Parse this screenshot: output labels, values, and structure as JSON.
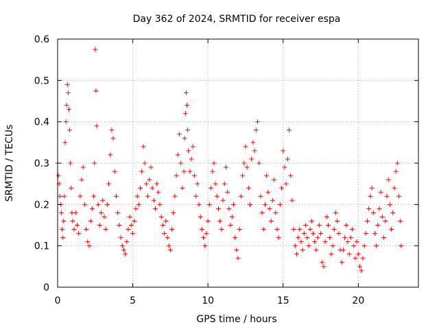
{
  "chart_data": {
    "type": "scatter",
    "title": "Day 362 of 2024, SRMTID for receiver espa",
    "xlabel": "GPS time / hours",
    "ylabel": "SRMTID / TECUs",
    "xlim": [
      0,
      24
    ],
    "ylim": [
      0,
      0.6
    ],
    "x_ticks": [
      0,
      5,
      10,
      15,
      20
    ],
    "x_tick_labels": [
      "0",
      "5",
      "10",
      "15",
      "20"
    ],
    "y_ticks": [
      0,
      0.1,
      0.2,
      0.3,
      0.4,
      0.5,
      0.6
    ],
    "y_tick_labels": [
      "0",
      "0.1",
      "0.2",
      "0.3",
      "0.4",
      "0.5",
      "0.6"
    ],
    "grid": true,
    "marker": "+",
    "series": [
      {
        "name": "SRMTID",
        "color": "#ff0000",
        "points": [
          [
            0.0,
            0.3
          ],
          [
            0.05,
            0.27
          ],
          [
            0.1,
            0.25
          ],
          [
            0.15,
            0.22
          ],
          [
            0.2,
            0.2
          ],
          [
            0.25,
            0.18
          ],
          [
            0.3,
            0.14
          ],
          [
            0.35,
            0.12
          ],
          [
            0.4,
            0.16
          ],
          [
            0.45,
            0.22
          ],
          [
            0.5,
            0.35
          ],
          [
            0.55,
            0.4
          ],
          [
            0.6,
            0.44
          ],
          [
            0.65,
            0.49
          ],
          [
            0.7,
            0.47
          ],
          [
            0.75,
            0.43
          ],
          [
            0.8,
            0.38
          ],
          [
            0.85,
            0.3
          ],
          [
            0.9,
            0.24
          ],
          [
            0.95,
            0.18
          ],
          [
            1.0,
            0.16
          ],
          [
            1.1,
            0.14
          ],
          [
            1.2,
            0.18
          ],
          [
            1.3,
            0.15
          ],
          [
            1.4,
            0.13
          ],
          [
            1.5,
            0.22
          ],
          [
            1.6,
            0.26
          ],
          [
            1.7,
            0.29
          ],
          [
            1.8,
            0.2
          ],
          [
            1.9,
            0.14
          ],
          [
            2.0,
            0.11
          ],
          [
            2.1,
            0.1
          ],
          [
            2.2,
            0.16
          ],
          [
            2.3,
            0.19
          ],
          [
            2.4,
            0.22
          ],
          [
            2.45,
            0.3
          ],
          [
            2.5,
            0.575
          ],
          [
            2.55,
            0.475
          ],
          [
            2.6,
            0.39
          ],
          [
            2.7,
            0.2
          ],
          [
            2.8,
            0.15
          ],
          [
            2.9,
            0.18
          ],
          [
            3.0,
            0.21
          ],
          [
            3.1,
            0.17
          ],
          [
            3.2,
            0.14
          ],
          [
            3.3,
            0.2
          ],
          [
            3.4,
            0.25
          ],
          [
            3.5,
            0.32
          ],
          [
            3.6,
            0.38
          ],
          [
            3.7,
            0.36
          ],
          [
            3.8,
            0.28
          ],
          [
            3.9,
            0.22
          ],
          [
            4.0,
            0.18
          ],
          [
            4.1,
            0.15
          ],
          [
            4.2,
            0.12
          ],
          [
            4.3,
            0.1
          ],
          [
            4.4,
            0.09
          ],
          [
            4.5,
            0.08
          ],
          [
            4.6,
            0.11
          ],
          [
            4.7,
            0.14
          ],
          [
            4.8,
            0.17
          ],
          [
            4.9,
            0.15
          ],
          [
            5.0,
            0.13
          ],
          [
            5.1,
            0.16
          ],
          [
            5.2,
            0.19
          ],
          [
            5.3,
            0.22
          ],
          [
            5.4,
            0.2
          ],
          [
            5.5,
            0.24
          ],
          [
            5.6,
            0.28
          ],
          [
            5.7,
            0.34
          ],
          [
            5.8,
            0.3
          ],
          [
            5.9,
            0.25
          ],
          [
            6.0,
            0.22
          ],
          [
            6.1,
            0.26
          ],
          [
            6.2,
            0.29
          ],
          [
            6.3,
            0.24
          ],
          [
            6.4,
            0.21
          ],
          [
            6.5,
            0.19
          ],
          [
            6.6,
            0.25
          ],
          [
            6.7,
            0.23
          ],
          [
            6.8,
            0.2
          ],
          [
            6.9,
            0.17
          ],
          [
            7.0,
            0.15
          ],
          [
            7.1,
            0.13
          ],
          [
            7.2,
            0.16
          ],
          [
            7.3,
            0.12
          ],
          [
            7.4,
            0.1
          ],
          [
            7.5,
            0.09
          ],
          [
            7.6,
            0.14
          ],
          [
            7.7,
            0.18
          ],
          [
            7.8,
            0.22
          ],
          [
            7.9,
            0.27
          ],
          [
            8.0,
            0.32
          ],
          [
            8.1,
            0.37
          ],
          [
            8.2,
            0.3
          ],
          [
            8.3,
            0.24
          ],
          [
            8.4,
            0.28
          ],
          [
            8.45,
            0.36
          ],
          [
            8.5,
            0.42
          ],
          [
            8.55,
            0.47
          ],
          [
            8.6,
            0.44
          ],
          [
            8.65,
            0.38
          ],
          [
            8.7,
            0.33
          ],
          [
            8.8,
            0.28
          ],
          [
            8.9,
            0.31
          ],
          [
            9.0,
            0.34
          ],
          [
            9.1,
            0.27
          ],
          [
            9.2,
            0.22
          ],
          [
            9.3,
            0.25
          ],
          [
            9.4,
            0.2
          ],
          [
            9.5,
            0.17
          ],
          [
            9.6,
            0.14
          ],
          [
            9.7,
            0.12
          ],
          [
            9.8,
            0.1
          ],
          [
            9.9,
            0.13
          ],
          [
            10.0,
            0.16
          ],
          [
            10.1,
            0.2
          ],
          [
            10.2,
            0.24
          ],
          [
            10.3,
            0.28
          ],
          [
            10.4,
            0.3
          ],
          [
            10.5,
            0.25
          ],
          [
            10.6,
            0.22
          ],
          [
            10.7,
            0.19
          ],
          [
            10.8,
            0.16
          ],
          [
            10.9,
            0.14
          ],
          [
            11.0,
            0.21
          ],
          [
            11.1,
            0.25
          ],
          [
            11.2,
            0.29
          ],
          [
            11.3,
            0.23
          ],
          [
            11.4,
            0.19
          ],
          [
            11.5,
            0.15
          ],
          [
            11.6,
            0.17
          ],
          [
            11.7,
            0.2
          ],
          [
            11.8,
            0.12
          ],
          [
            11.9,
            0.09
          ],
          [
            12.0,
            0.07
          ],
          [
            12.1,
            0.14
          ],
          [
            12.2,
            0.22
          ],
          [
            12.3,
            0.27
          ],
          [
            12.4,
            0.3
          ],
          [
            12.5,
            0.34
          ],
          [
            12.6,
            0.29
          ],
          [
            12.7,
            0.24
          ],
          [
            12.8,
            0.2
          ],
          [
            12.9,
            0.31
          ],
          [
            13.0,
            0.35
          ],
          [
            13.1,
            0.33
          ],
          [
            13.2,
            0.38
          ],
          [
            13.3,
            0.4
          ],
          [
            13.4,
            0.3
          ],
          [
            13.5,
            0.22
          ],
          [
            13.6,
            0.18
          ],
          [
            13.7,
            0.14
          ],
          [
            13.8,
            0.2
          ],
          [
            13.9,
            0.27
          ],
          [
            14.0,
            0.23
          ],
          [
            14.1,
            0.19
          ],
          [
            14.2,
            0.16
          ],
          [
            14.3,
            0.21
          ],
          [
            14.4,
            0.26
          ],
          [
            14.5,
            0.18
          ],
          [
            14.6,
            0.14
          ],
          [
            14.7,
            0.12
          ],
          [
            14.8,
            0.2
          ],
          [
            14.9,
            0.24
          ],
          [
            15.0,
            0.33
          ],
          [
            15.1,
            0.29
          ],
          [
            15.2,
            0.25
          ],
          [
            15.3,
            0.31
          ],
          [
            15.4,
            0.38
          ],
          [
            15.5,
            0.27
          ],
          [
            15.6,
            0.21
          ],
          [
            15.7,
            0.14
          ],
          [
            15.8,
            0.1
          ],
          [
            15.9,
            0.08
          ],
          [
            16.0,
            0.12
          ],
          [
            16.1,
            0.14
          ],
          [
            16.2,
            0.11
          ],
          [
            16.3,
            0.09
          ],
          [
            16.4,
            0.13
          ],
          [
            16.5,
            0.15
          ],
          [
            16.6,
            0.12
          ],
          [
            16.7,
            0.1
          ],
          [
            16.8,
            0.14
          ],
          [
            16.9,
            0.16
          ],
          [
            17.0,
            0.13
          ],
          [
            17.1,
            0.11
          ],
          [
            17.2,
            0.09
          ],
          [
            17.3,
            0.12
          ],
          [
            17.4,
            0.15
          ],
          [
            17.5,
            0.13
          ],
          [
            17.6,
            0.06
          ],
          [
            17.7,
            0.05
          ],
          [
            17.8,
            0.11
          ],
          [
            17.9,
            0.17
          ],
          [
            18.0,
            0.15
          ],
          [
            18.1,
            0.12
          ],
          [
            18.2,
            0.08
          ],
          [
            18.3,
            0.1
          ],
          [
            18.4,
            0.14
          ],
          [
            18.5,
            0.18
          ],
          [
            18.6,
            0.16
          ],
          [
            18.7,
            0.13
          ],
          [
            18.8,
            0.09
          ],
          [
            18.9,
            0.06
          ],
          [
            19.0,
            0.09
          ],
          [
            19.1,
            0.12
          ],
          [
            19.2,
            0.15
          ],
          [
            19.3,
            0.11
          ],
          [
            19.4,
            0.08
          ],
          [
            19.5,
            0.12
          ],
          [
            19.6,
            0.14
          ],
          [
            19.7,
            0.1
          ],
          [
            19.8,
            0.07
          ],
          [
            19.9,
            0.11
          ],
          [
            20.0,
            0.08
          ],
          [
            20.1,
            0.05
          ],
          [
            20.2,
            0.04
          ],
          [
            20.3,
            0.07
          ],
          [
            20.4,
            0.1
          ],
          [
            20.5,
            0.13
          ],
          [
            20.6,
            0.16
          ],
          [
            20.7,
            0.19
          ],
          [
            20.8,
            0.22
          ],
          [
            20.9,
            0.24
          ],
          [
            21.0,
            0.18
          ],
          [
            21.1,
            0.13
          ],
          [
            21.2,
            0.1
          ],
          [
            21.3,
            0.15
          ],
          [
            21.4,
            0.19
          ],
          [
            21.5,
            0.23
          ],
          [
            21.6,
            0.17
          ],
          [
            21.7,
            0.12
          ],
          [
            21.8,
            0.16
          ],
          [
            21.9,
            0.22
          ],
          [
            22.0,
            0.26
          ],
          [
            22.1,
            0.2
          ],
          [
            22.2,
            0.14
          ],
          [
            22.3,
            0.18
          ],
          [
            22.4,
            0.24
          ],
          [
            22.5,
            0.28
          ],
          [
            22.6,
            0.3
          ],
          [
            22.7,
            0.22
          ],
          [
            22.8,
            0.16
          ],
          [
            22.85,
            0.1
          ]
        ]
      }
    ]
  }
}
